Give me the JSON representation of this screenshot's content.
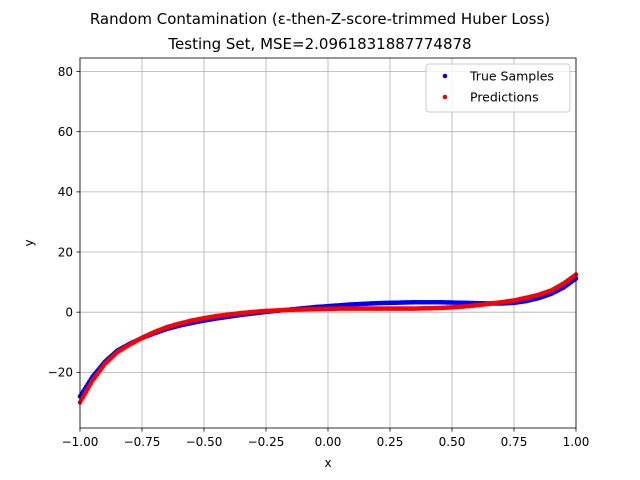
{
  "chart_data": {
    "type": "scatter",
    "title": "Random Contamination (ε-then-Z-score-trimmed Huber Loss)",
    "subtitle": "Testing Set, MSE=2.0961831887774878",
    "xlabel": "x",
    "ylabel": "y",
    "xlim": [
      -1.0,
      1.0
    ],
    "ylim": [
      -38.5,
      84.5
    ],
    "xticks": [
      -1.0,
      -0.75,
      -0.5,
      -0.25,
      0.0,
      0.25,
      0.5,
      0.75,
      1.0
    ],
    "xtick_labels": [
      "−1.00",
      "−0.75",
      "−0.50",
      "−0.25",
      "0.00",
      "0.25",
      "0.50",
      "0.75",
      "1.00"
    ],
    "yticks": [
      -20,
      0,
      20,
      40,
      60,
      80
    ],
    "ytick_labels": [
      "−20",
      "0",
      "20",
      "40",
      "60",
      "80"
    ],
    "grid": true,
    "legend": "top-right",
    "series": [
      {
        "name": "True Samples",
        "color": "#0000ff",
        "points": [
          [
            -1.0,
            -28.0
          ],
          [
            -0.95,
            -21.5
          ],
          [
            -0.9,
            -16.5
          ],
          [
            -0.85,
            -12.8
          ],
          [
            -0.8,
            -10.5
          ],
          [
            -0.75,
            -8.6
          ],
          [
            -0.7,
            -7.0
          ],
          [
            -0.65,
            -5.6
          ],
          [
            -0.6,
            -4.5
          ],
          [
            -0.55,
            -3.6
          ],
          [
            -0.5,
            -2.8
          ],
          [
            -0.45,
            -2.1
          ],
          [
            -0.4,
            -1.5
          ],
          [
            -0.35,
            -0.9
          ],
          [
            -0.3,
            -0.4
          ],
          [
            -0.25,
            0.1
          ],
          [
            -0.2,
            0.5
          ],
          [
            -0.15,
            0.9
          ],
          [
            -0.1,
            1.3
          ],
          [
            -0.05,
            1.7
          ],
          [
            0.0,
            2.0
          ],
          [
            0.05,
            2.3
          ],
          [
            0.1,
            2.6
          ],
          [
            0.15,
            2.8
          ],
          [
            0.2,
            3.0
          ],
          [
            0.25,
            3.1
          ],
          [
            0.3,
            3.2
          ],
          [
            0.35,
            3.3
          ],
          [
            0.4,
            3.3
          ],
          [
            0.45,
            3.3
          ],
          [
            0.5,
            3.2
          ],
          [
            0.55,
            3.1
          ],
          [
            0.6,
            3.0
          ],
          [
            0.65,
            2.9
          ],
          [
            0.7,
            2.9
          ],
          [
            0.75,
            3.1
          ],
          [
            0.8,
            3.7
          ],
          [
            0.85,
            4.7
          ],
          [
            0.9,
            6.1
          ],
          [
            0.95,
            8.2
          ],
          [
            1.0,
            11.2
          ]
        ]
      },
      {
        "name": "Predictions",
        "color": "#ff0000",
        "points": [
          [
            -1.0,
            -30.0
          ],
          [
            -0.95,
            -22.8
          ],
          [
            -0.9,
            -17.2
          ],
          [
            -0.85,
            -13.3
          ],
          [
            -0.8,
            -10.8
          ],
          [
            -0.75,
            -8.5
          ],
          [
            -0.7,
            -6.6
          ],
          [
            -0.65,
            -5.0
          ],
          [
            -0.6,
            -3.8
          ],
          [
            -0.55,
            -2.8
          ],
          [
            -0.5,
            -2.0
          ],
          [
            -0.45,
            -1.3
          ],
          [
            -0.4,
            -0.8
          ],
          [
            -0.35,
            -0.3
          ],
          [
            -0.3,
            0.1
          ],
          [
            -0.25,
            0.4
          ],
          [
            -0.2,
            0.6
          ],
          [
            -0.15,
            0.8
          ],
          [
            -0.1,
            0.9
          ],
          [
            -0.05,
            1.0
          ],
          [
            0.0,
            1.1
          ],
          [
            0.05,
            1.2
          ],
          [
            0.1,
            1.2
          ],
          [
            0.15,
            1.2
          ],
          [
            0.2,
            1.2
          ],
          [
            0.25,
            1.2
          ],
          [
            0.3,
            1.2
          ],
          [
            0.35,
            1.2
          ],
          [
            0.4,
            1.3
          ],
          [
            0.45,
            1.4
          ],
          [
            0.5,
            1.6
          ],
          [
            0.55,
            1.9
          ],
          [
            0.6,
            2.3
          ],
          [
            0.65,
            2.8
          ],
          [
            0.7,
            3.3
          ],
          [
            0.75,
            3.9
          ],
          [
            0.8,
            4.8
          ],
          [
            0.85,
            5.8
          ],
          [
            0.9,
            7.2
          ],
          [
            0.95,
            9.5
          ],
          [
            1.0,
            12.5
          ]
        ]
      }
    ]
  }
}
